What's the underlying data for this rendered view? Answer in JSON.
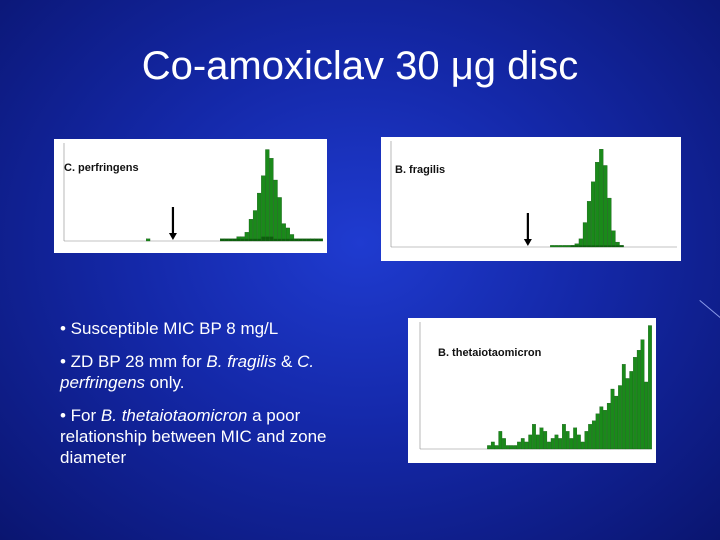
{
  "slide": {
    "title": "Co-amoxiclav 30 μg disc",
    "bullets": [
      {
        "text": "• Susceptible MIC BP 8 mg/L"
      },
      {
        "prefix": "• ZD BP 28 mm for ",
        "i1": "B. fragilis",
        "mid": " & ",
        "i2": "C. perfringens",
        "suffix": " only."
      },
      {
        "prefix": "• For ",
        "i1": "B. thetaiotaomicron",
        "suffix": " a poor relationship between MIC and zone diameter"
      }
    ]
  },
  "colors": {
    "bar": "#1a8a1a",
    "bar_dark": "#0d5f0d",
    "background": "#1428a8"
  },
  "chart_data": [
    {
      "type": "bar",
      "title": "C. perfringens",
      "values": [
        0,
        0,
        0,
        0,
        0,
        0,
        0,
        0,
        0,
        0,
        0,
        0,
        0,
        0,
        0,
        0,
        0,
        0,
        0,
        0,
        1,
        0,
        0,
        0,
        0,
        0,
        0,
        0,
        0,
        0,
        0,
        0,
        0,
        0,
        0,
        0,
        0,
        0,
        1,
        1,
        1,
        1,
        2,
        2,
        4,
        10,
        14,
        22,
        30,
        42,
        38,
        28,
        20,
        8,
        6,
        3,
        1,
        1,
        1,
        1,
        1,
        1,
        1
      ],
      "dark_values": [
        0,
        0,
        0,
        0,
        0,
        0,
        0,
        0,
        0,
        0,
        0,
        0,
        0,
        0,
        0,
        0,
        0,
        0,
        0,
        0,
        0,
        0,
        0,
        0,
        0,
        0,
        0,
        0,
        0,
        0,
        0,
        0,
        0,
        0,
        0,
        0,
        0,
        0,
        1,
        1,
        1,
        1,
        1,
        1,
        1,
        1,
        1,
        1,
        2,
        2,
        2,
        1,
        1,
        1,
        1,
        1,
        1,
        1,
        1,
        1,
        1,
        1,
        1
      ],
      "ylim": [
        0,
        45
      ],
      "arrow_index": 26
    },
    {
      "type": "bar",
      "title": "B. fragilis",
      "values": [
        0,
        0,
        0,
        0,
        0,
        0,
        0,
        0,
        0,
        0,
        0,
        0,
        0,
        0,
        0,
        0,
        0,
        0,
        0,
        0,
        0,
        0,
        0,
        0,
        0,
        0,
        0,
        0,
        0,
        0,
        0,
        0,
        0,
        0,
        0,
        0,
        0,
        0,
        0,
        1,
        1,
        1,
        1,
        1,
        1,
        2,
        5,
        15,
        28,
        40,
        52,
        60,
        50,
        30,
        10,
        3,
        1,
        0,
        0,
        0,
        0,
        0,
        0,
        0,
        0,
        0,
        0,
        0,
        0,
        0
      ],
      "dark_values": [
        0,
        0,
        0,
        0,
        0,
        0,
        0,
        0,
        0,
        0,
        0,
        0,
        0,
        0,
        0,
        0,
        0,
        0,
        0,
        0,
        0,
        0,
        0,
        0,
        0,
        0,
        0,
        0,
        0,
        0,
        0,
        0,
        0,
        0,
        0,
        0,
        0,
        0,
        0,
        0,
        0,
        0,
        0,
        0,
        1,
        1,
        1,
        1,
        1,
        1,
        1,
        1,
        1,
        1,
        1,
        1,
        1,
        0,
        0,
        0,
        0,
        0,
        0,
        0,
        0,
        0,
        0,
        0,
        0,
        0
      ],
      "ylim": [
        0,
        65
      ],
      "arrow_index": 33
    },
    {
      "type": "bar",
      "title": "B. thetaiotaomicron",
      "values": [
        0,
        0,
        0,
        0,
        0,
        0,
        0,
        0,
        0,
        0,
        0,
        0,
        0,
        0,
        0,
        0,
        0,
        0,
        1,
        2,
        1,
        5,
        3,
        1,
        1,
        1,
        2,
        3,
        2,
        4,
        7,
        4,
        6,
        5,
        2,
        3,
        4,
        3,
        7,
        5,
        3,
        6,
        4,
        2,
        5,
        7,
        8,
        10,
        12,
        11,
        13,
        17,
        15,
        18,
        24,
        20,
        22,
        26,
        28,
        31,
        19,
        35
      ],
      "ylim": [
        0,
        36
      ]
    }
  ]
}
